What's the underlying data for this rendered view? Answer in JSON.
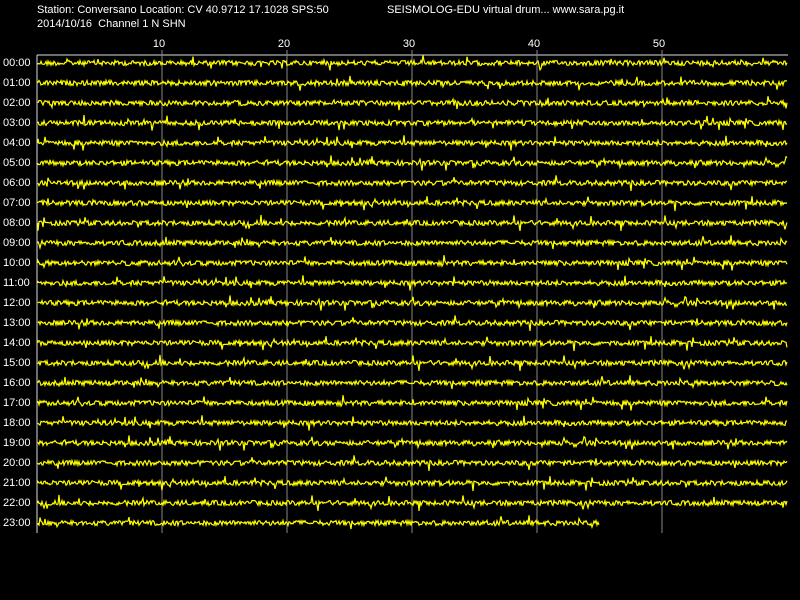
{
  "header": {
    "station": "Station: Conversano Location: CV 40.9712 17.1028 SPS:50",
    "program": "SEISMOLOG-EDU virtual drum... www.sara.pg.it",
    "date": "2014/10/16  Channel 1 N SHN"
  },
  "x_axis": {
    "lim": [
      0,
      60
    ],
    "ticks": [
      10,
      20,
      30,
      40,
      50
    ]
  },
  "rows": [
    "00:00",
    "01:00",
    "02:00",
    "03:00",
    "04:00",
    "05:00",
    "06:00",
    "07:00",
    "08:00",
    "09:00",
    "10:00",
    "11:00",
    "12:00",
    "13:00",
    "14:00",
    "15:00",
    "16:00",
    "17:00",
    "18:00",
    "19:00",
    "20:00",
    "21:00",
    "22:00",
    "23:00"
  ],
  "last_row_end_minute": 45
}
